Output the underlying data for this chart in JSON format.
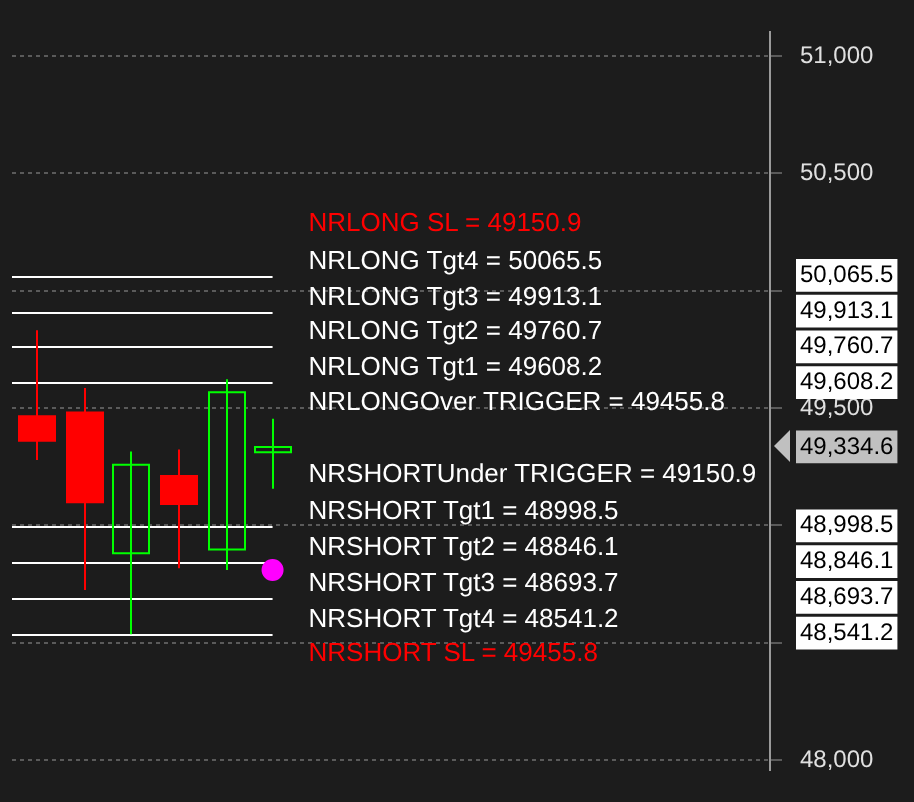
{
  "chart_data": {
    "type": "candlestick",
    "categories": [
      null,
      null,
      null,
      null,
      null,
      null,
      null,
      null,
      null,
      null,
      null,
      null,
      null,
      null,
      null,
      null
    ],
    "ohlc": [
      [
        49469,
        49831,
        49279,
        49356
      ],
      [
        49485,
        49585,
        48725,
        49095
      ],
      [
        48882,
        49315,
        48536,
        49259
      ],
      [
        49215,
        49323,
        48818,
        49087
      ],
      [
        48897,
        49623,
        48810,
        49567
      ],
      [
        49312,
        49454,
        49156,
        49334.6
      ],
      null,
      null,
      null,
      null,
      null,
      null,
      null,
      null,
      null,
      null
    ],
    "colors": [
      "#ff0000",
      "#ff0000",
      "#00ff00",
      "#ff0000",
      "#00ff00",
      "#00ff00",
      null,
      null,
      null,
      null,
      null,
      null,
      null,
      null,
      null,
      null
    ],
    "series": [
      {
        "type": "scatter",
        "color": "#ff00ff",
        "values": [
          null,
          null,
          null,
          null,
          null,
          48810,
          null,
          null,
          null,
          null,
          null,
          null,
          null,
          null,
          null,
          null
        ]
      }
    ],
    "ylim": [
      47960,
      51100
    ],
    "yticks": [
      {
        "value": 48000,
        "label": "48,000"
      },
      {
        "value": 48500,
        "label": null
      },
      {
        "value": 48541.2,
        "label": "48,541.2"
      },
      {
        "value": 48693.7,
        "label": "48,693.7"
      },
      {
        "value": 48846.1,
        "label": "48,846.1"
      },
      {
        "value": 48998.5,
        "label": "48,998.5"
      },
      {
        "value": 49000,
        "label": null
      },
      {
        "value": 49334.6,
        "label": "49,334.6"
      },
      {
        "value": 49500,
        "label": "49,500"
      },
      {
        "value": 49608.2,
        "label": "49,608.2"
      },
      {
        "value": 49760.7,
        "label": "49,760.7"
      },
      {
        "value": 49913.1,
        "label": "49,913.1"
      },
      {
        "value": 50000,
        "label": null
      },
      {
        "value": 50065.5,
        "label": "50,065.5"
      },
      {
        "value": 50500,
        "label": "50,500"
      },
      {
        "value": 51000,
        "label": "51,000"
      }
    ],
    "grid": "y",
    "ref_lines": [
      {
        "axis": "y",
        "value": 50065.5,
        "label": "NRLONG Tgt4 = 50065.5",
        "color": "#ffffff"
      },
      {
        "axis": "y",
        "value": 49913.1,
        "label": "NRLONG Tgt3 = 49913.1",
        "color": "#ffffff"
      },
      {
        "axis": "y",
        "value": 49760.7,
        "label": "NRLONG Tgt2 = 49760.7",
        "color": "#ffffff"
      },
      {
        "axis": "y",
        "value": 49608.2,
        "label": "NRLONG Tgt1 = 49608.2",
        "color": "#ffffff"
      },
      {
        "axis": "y",
        "value": 48998.5,
        "label": "NRSHORT Tgt1 = 48998.5",
        "color": "#ffffff"
      },
      {
        "axis": "y",
        "value": 48846.1,
        "label": "NRSHORT Tgt2 = 48846.1",
        "color": "#ffffff"
      },
      {
        "axis": "y",
        "value": 48693.7,
        "label": "NRSHORT Tgt3 = 48693.7",
        "color": "#ffffff"
      },
      {
        "axis": "y",
        "value": 48541.2,
        "label": "NRSHORT Tgt4 = 48541.2",
        "color": "#ffffff"
      }
    ],
    "annotations": [
      "NRLONG SL = 49150.9",
      "NRLONGOver TRIGGER = 49455.8",
      "NRSHORTUnder TRIGGER = 49150.9",
      "NRSHORT SL = 49455.8"
    ]
  }
}
